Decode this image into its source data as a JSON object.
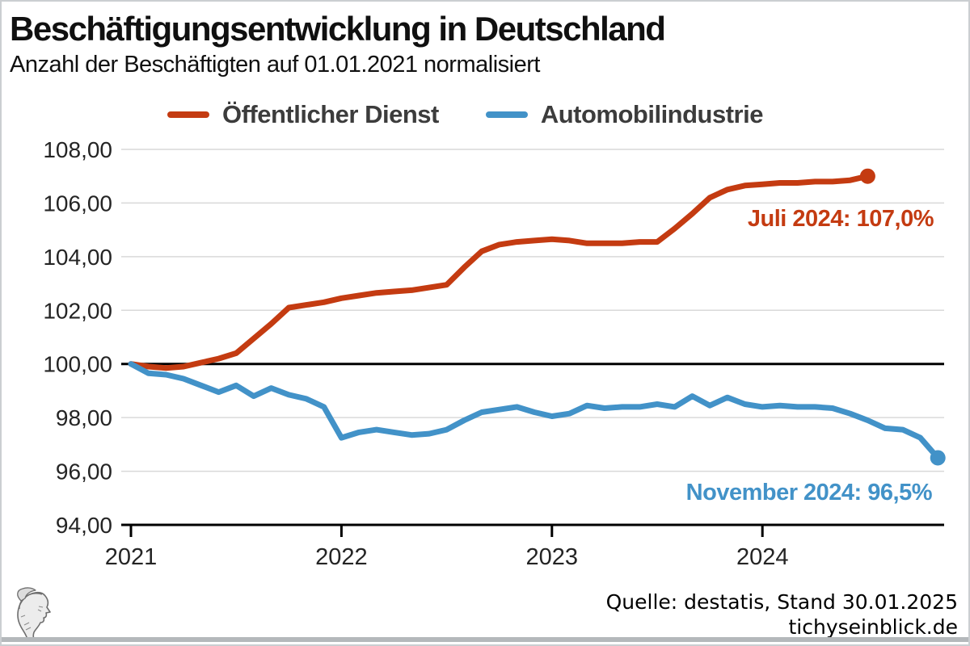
{
  "chart_data": {
    "type": "line",
    "title": "Beschäftigungsentwicklung in Deutschland",
    "subtitle": "Anzahl der Beschäftigten auf 01.01.2021 normalisiert",
    "x_start": "2021-01",
    "x_interval": "monthly",
    "grid": "horizontal",
    "legend_position": "top",
    "ylim": [
      94,
      108
    ],
    "baseline_value": 100,
    "x_ticks": [
      {
        "label": "2021",
        "month_index": 0
      },
      {
        "label": "2022",
        "month_index": 12
      },
      {
        "label": "2023",
        "month_index": 24
      },
      {
        "label": "2024",
        "month_index": 36
      }
    ],
    "y_ticks": [
      {
        "value": 94,
        "label": "94,00"
      },
      {
        "value": 96,
        "label": "96,00"
      },
      {
        "value": 98,
        "label": "98,00"
      },
      {
        "value": 100,
        "label": "100,00"
      },
      {
        "value": 102,
        "label": "102,00"
      },
      {
        "value": 104,
        "label": "104,00"
      },
      {
        "value": 106,
        "label": "106,00"
      },
      {
        "value": 108,
        "label": "108,00"
      }
    ],
    "series": [
      {
        "name": "Öffentlicher Dienst",
        "color": "#c43b11",
        "end_point": {
          "label": "Juli 2024: 107,0%",
          "month": "2024-07",
          "value": 107.0
        },
        "values": [
          100.0,
          99.9,
          99.85,
          99.9,
          100.05,
          100.2,
          100.4,
          100.95,
          101.5,
          102.1,
          102.2,
          102.3,
          102.45,
          102.55,
          102.65,
          102.7,
          102.75,
          102.85,
          102.95,
          103.6,
          104.2,
          104.45,
          104.55,
          104.6,
          104.65,
          104.6,
          104.5,
          104.5,
          104.5,
          104.55,
          104.55,
          105.05,
          105.6,
          106.2,
          106.5,
          106.65,
          106.7,
          106.75,
          106.75,
          106.8,
          106.8,
          106.85,
          107.0
        ]
      },
      {
        "name": "Automobilindustrie",
        "color": "#4292c8",
        "end_point": {
          "label": "November 2024: 96,5%",
          "month": "2024-11",
          "value": 96.5
        },
        "values": [
          100.0,
          99.65,
          99.6,
          99.45,
          99.2,
          98.95,
          99.2,
          98.8,
          99.1,
          98.85,
          98.7,
          98.4,
          97.25,
          97.45,
          97.55,
          97.45,
          97.35,
          97.4,
          97.55,
          97.9,
          98.2,
          98.3,
          98.4,
          98.2,
          98.05,
          98.15,
          98.45,
          98.35,
          98.4,
          98.4,
          98.5,
          98.4,
          98.8,
          98.45,
          98.75,
          98.5,
          98.4,
          98.45,
          98.4,
          98.4,
          98.35,
          98.15,
          97.9,
          97.6,
          97.55,
          97.25,
          96.5
        ]
      }
    ]
  },
  "footer": {
    "source": "Quelle: destatis, Stand 30.01.2025",
    "site": "tichyseinblick.de",
    "logo_icon": "hermes-head-engraving"
  }
}
